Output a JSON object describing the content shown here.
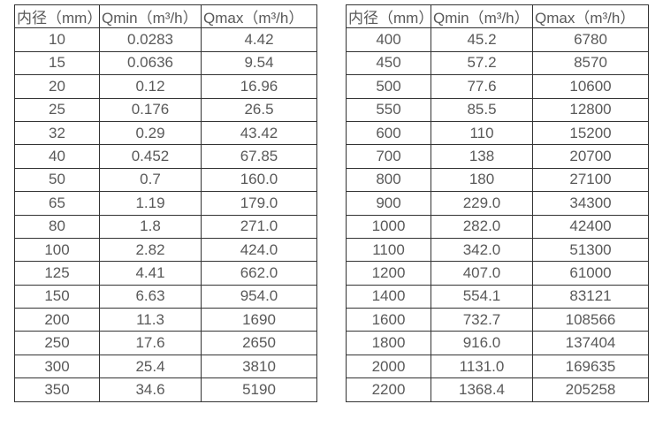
{
  "colors": {
    "background": "#ffffff",
    "border": "#333333",
    "text": "#595959"
  },
  "tables": [
    {
      "name": "small-diameters",
      "headers": [
        "内径（mm）",
        "Qmin（m³/h）",
        "Qmax（m³/h）"
      ],
      "rows": [
        [
          "10",
          "0.0283",
          "4.42"
        ],
        [
          "15",
          "0.0636",
          "9.54"
        ],
        [
          "20",
          "0.12",
          "16.96"
        ],
        [
          "25",
          "0.176",
          "26.5"
        ],
        [
          "32",
          "0.29",
          "43.42"
        ],
        [
          "40",
          "0.452",
          "67.85"
        ],
        [
          "50",
          "0.7",
          "160.0"
        ],
        [
          "65",
          "1.19",
          "179.0"
        ],
        [
          "80",
          "1.8",
          "271.0"
        ],
        [
          "100",
          "2.82",
          "424.0"
        ],
        [
          "125",
          "4.41",
          "662.0"
        ],
        [
          "150",
          "6.63",
          "954.0"
        ],
        [
          "200",
          "11.3",
          "1690"
        ],
        [
          "250",
          "17.6",
          "2650"
        ],
        [
          "300",
          "25.4",
          "3810"
        ],
        [
          "350",
          "34.6",
          "5190"
        ]
      ]
    },
    {
      "name": "large-diameters",
      "headers": [
        "内径（mm）",
        "Qmin（m³/h）",
        "Qmax（m³/h）"
      ],
      "rows": [
        [
          "400",
          "45.2",
          "6780"
        ],
        [
          "450",
          "57.2",
          "8570"
        ],
        [
          "500",
          "77.6",
          "10600"
        ],
        [
          "550",
          "85.5",
          "12800"
        ],
        [
          "600",
          "110",
          "15200"
        ],
        [
          "700",
          "138",
          "20700"
        ],
        [
          "800",
          "180",
          "27100"
        ],
        [
          "900",
          "229.0",
          "34300"
        ],
        [
          "1000",
          "282.0",
          "42400"
        ],
        [
          "1100",
          "342.0",
          "51300"
        ],
        [
          "1200",
          "407.0",
          "61000"
        ],
        [
          "1400",
          "554.1",
          "83121"
        ],
        [
          "1600",
          "732.7",
          "108566"
        ],
        [
          "1800",
          "916.0",
          "137404"
        ],
        [
          "2000",
          "1131.0",
          "169635"
        ],
        [
          "2200",
          "1368.4",
          "205258"
        ]
      ]
    }
  ]
}
